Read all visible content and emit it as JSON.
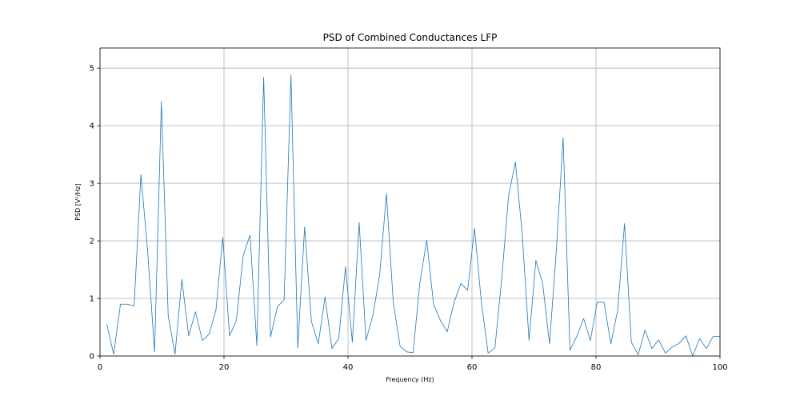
{
  "chart_data": {
    "type": "line",
    "title": "PSD of Combined Conductances LFP",
    "xlabel": "Frequency (Hz)",
    "ylabel": "PSD [V²/Hz]",
    "xlim": [
      0,
      100
    ],
    "ylim": [
      0,
      5.35
    ],
    "xticks": [
      0,
      20,
      40,
      60,
      80,
      100
    ],
    "yticks": [
      0,
      1,
      2,
      3,
      4,
      5
    ],
    "grid": true,
    "line_color": "#1f77b4",
    "series": [
      {
        "x": [
          1.1,
          2.2,
          3.3,
          4.4,
          5.5,
          6.6,
          7.7,
          8.8,
          9.9,
          11.0,
          12.1,
          13.2,
          14.3,
          15.4,
          16.5,
          17.6,
          18.7,
          19.8,
          20.9,
          22.0,
          23.1,
          24.2,
          25.3,
          26.4,
          27.5,
          28.6,
          29.7,
          30.8,
          31.9,
          33.0,
          34.1,
          35.2,
          36.3,
          37.4,
          38.5,
          39.6,
          40.7,
          41.8,
          42.9,
          44.0,
          45.1,
          46.2,
          47.3,
          48.4,
          49.5,
          50.5,
          51.6,
          52.7,
          53.8,
          54.9,
          56.0,
          57.1,
          58.2,
          59.3,
          60.4,
          61.5,
          62.6,
          63.7,
          64.8,
          65.9,
          67.0,
          68.1,
          69.2,
          70.3,
          71.4,
          72.5,
          73.6,
          74.7,
          75.8,
          76.9,
          78.0,
          79.1,
          80.2,
          81.3,
          82.4,
          83.5,
          84.6,
          85.7,
          86.8,
          87.9,
          89.0,
          90.1,
          91.2,
          92.3,
          93.4,
          94.5,
          95.6,
          96.7,
          97.8,
          98.9,
          100.0
        ],
        "values": [
          0.55,
          0.03,
          0.9,
          0.9,
          0.87,
          3.15,
          1.8,
          0.07,
          4.42,
          0.7,
          0.03,
          1.33,
          0.35,
          0.77,
          0.27,
          0.38,
          0.8,
          2.06,
          0.35,
          0.62,
          1.75,
          2.1,
          0.18,
          4.84,
          0.33,
          0.85,
          0.98,
          4.88,
          0.14,
          2.24,
          0.6,
          0.21,
          1.03,
          0.13,
          0.3,
          1.55,
          0.24,
          2.32,
          0.27,
          0.7,
          1.4,
          2.82,
          0.93,
          0.17,
          0.07,
          0.06,
          1.28,
          2.01,
          0.9,
          0.62,
          0.42,
          0.93,
          1.26,
          1.14,
          2.22,
          0.95,
          0.05,
          0.14,
          1.35,
          2.78,
          3.37,
          2.12,
          0.27,
          1.66,
          1.26,
          0.21,
          1.83,
          3.79,
          0.1,
          0.34,
          0.65,
          0.27,
          0.94,
          0.93,
          0.21,
          0.8,
          2.3,
          0.24,
          0.02,
          0.45,
          0.13,
          0.28,
          0.05,
          0.16,
          0.22,
          0.35,
          0.0,
          0.3,
          0.13,
          0.34,
          0.34
        ]
      }
    ]
  }
}
